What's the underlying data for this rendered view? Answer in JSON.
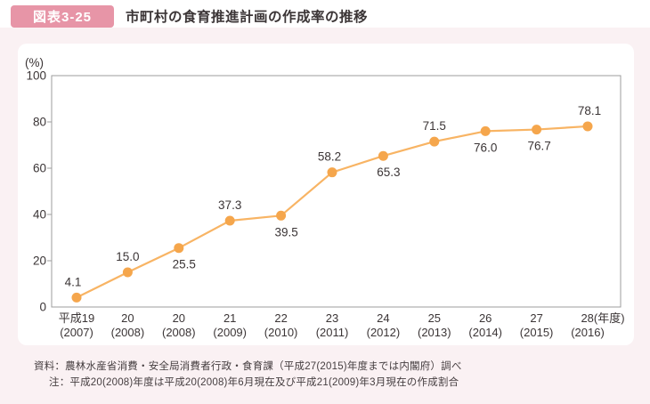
{
  "header": {
    "badge": "図表3-25",
    "title": "市町村の食育推進計画の作成率の推移"
  },
  "chart_data": {
    "type": "line",
    "title": "市町村の食育推進計画の作成率の推移",
    "unit_label": "(%)",
    "ylim": [
      0,
      100
    ],
    "yticks": [
      0,
      20,
      40,
      60,
      80,
      100
    ],
    "grid": false,
    "legend_position": "none",
    "categories_line1": [
      "平成19",
      "20",
      "20",
      "21",
      "22",
      "23",
      "24",
      "25",
      "26",
      "27",
      "28(年度)"
    ],
    "categories_line2": [
      "(2007)",
      "(2008)",
      "(2008)",
      "(2009)",
      "(2010)",
      "(2011)",
      "(2012)",
      "(2013)",
      "(2014)",
      "(2015)",
      "(2016)"
    ],
    "values": [
      4.1,
      15.0,
      25.5,
      37.3,
      39.5,
      58.2,
      65.3,
      71.5,
      76.0,
      76.7,
      78.1
    ],
    "value_labels": [
      "4.1",
      "15.0",
      "25.5",
      "37.3",
      "39.5",
      "58.2",
      "65.3",
      "71.5",
      "76.0",
      "76.7",
      "78.1"
    ],
    "label_positions": [
      "above",
      "above",
      "below",
      "above",
      "below",
      "above",
      "below",
      "above",
      "below",
      "below",
      "above"
    ],
    "colors": {
      "line": "#F8B464",
      "marker": "#F5A64C",
      "axis": "#9C9C9C",
      "text": "#3B3536"
    }
  },
  "footer": {
    "source": "資料：農林水産省消費・安全局消費者行政・食育課（平成27(2015)年度までは内閣府）調べ",
    "note": "注：平成20(2008)年度は平成20(2008)年6月現在及び平成21(2009)年3月現在の作成割合"
  },
  "theme": {
    "badge_bg": "#E795A7",
    "page_pink": "#FAF1F3",
    "card_bg": "#FFFFFF",
    "title_color": "#3B3536"
  }
}
